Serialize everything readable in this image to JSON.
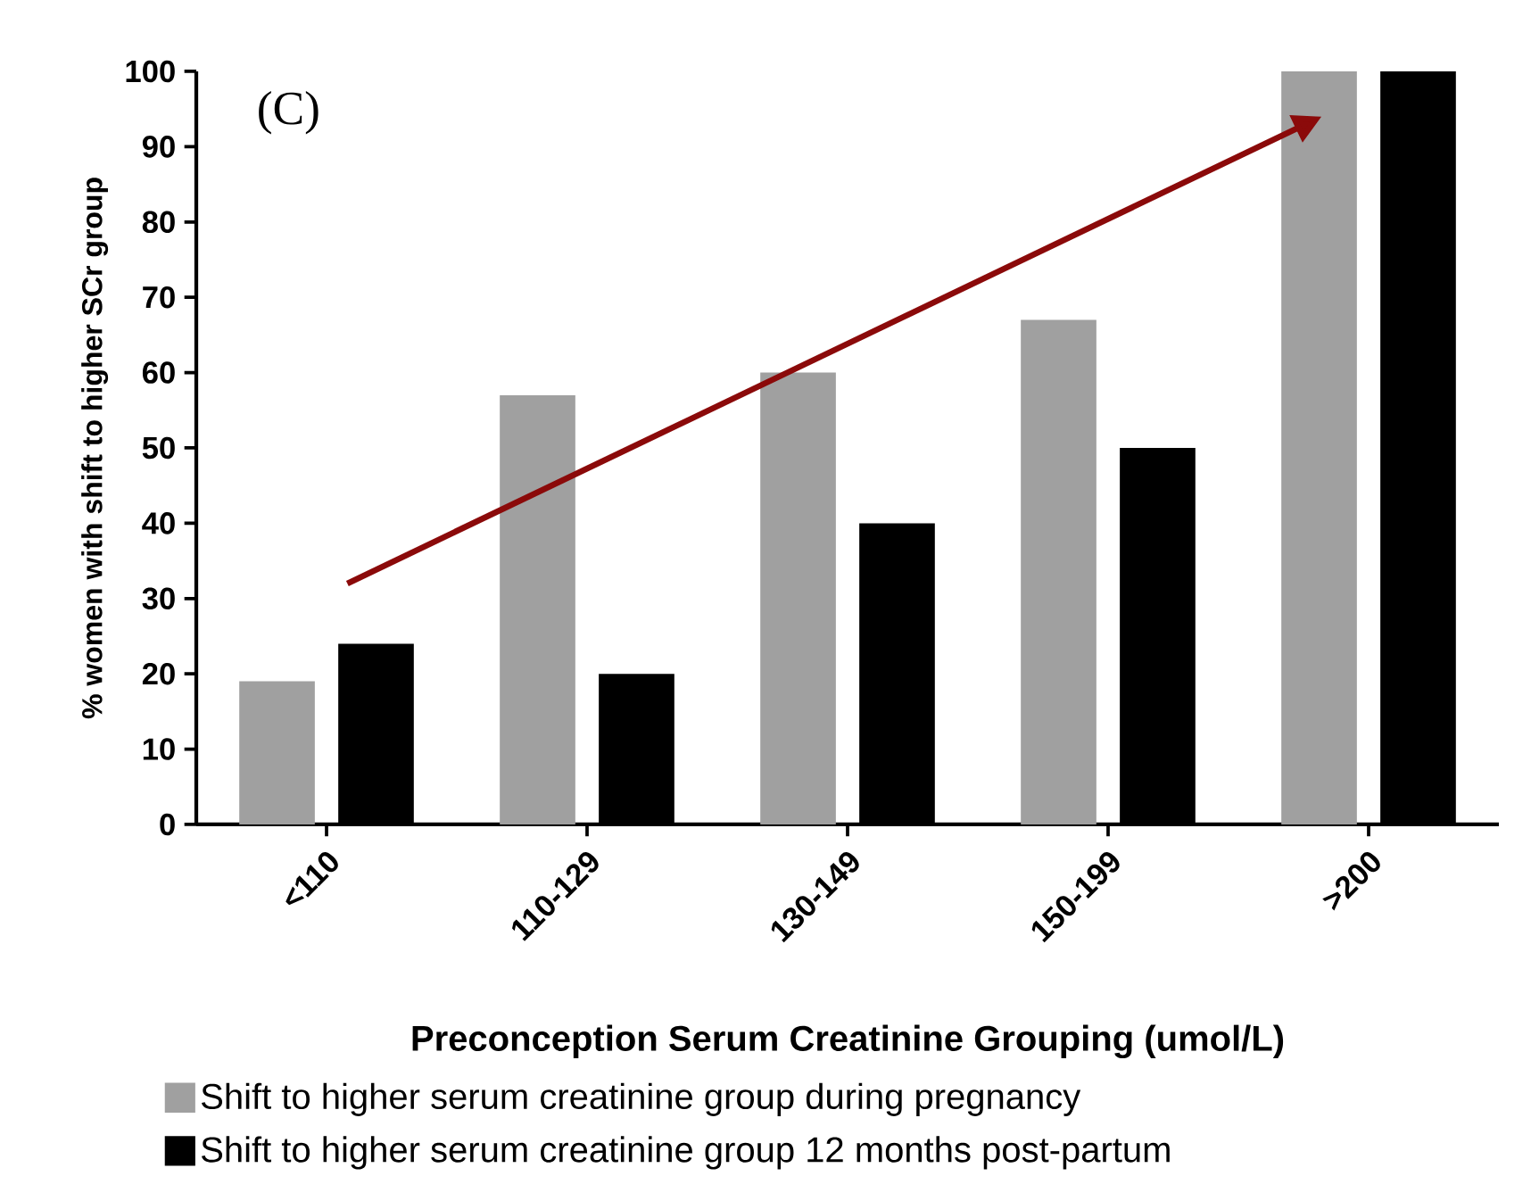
{
  "chart_data": {
    "type": "bar",
    "categories": [
      "<110",
      "110-129",
      "130-149",
      "150-199",
      ">200"
    ],
    "series": [
      {
        "name": "Shift to higher serum creatinine group during pregnancy",
        "color": "#a0a0a0",
        "values": [
          19,
          57,
          60,
          67,
          100
        ]
      },
      {
        "name": "Shift to higher serum creatinine group 12 months post-partum",
        "color": "#000000",
        "values": [
          24,
          20,
          40,
          50,
          100
        ]
      }
    ],
    "xlabel": "Preconception Serum Creatinine Grouping (umol/L)",
    "ylabel": "% women with shift to higher SCr group",
    "ylim": [
      0,
      100
    ],
    "yticks": [
      0,
      10,
      20,
      30,
      40,
      50,
      60,
      70,
      80,
      90,
      100
    ],
    "annotations": [
      "(C)"
    ],
    "legend": "bottom",
    "grid": false
  }
}
